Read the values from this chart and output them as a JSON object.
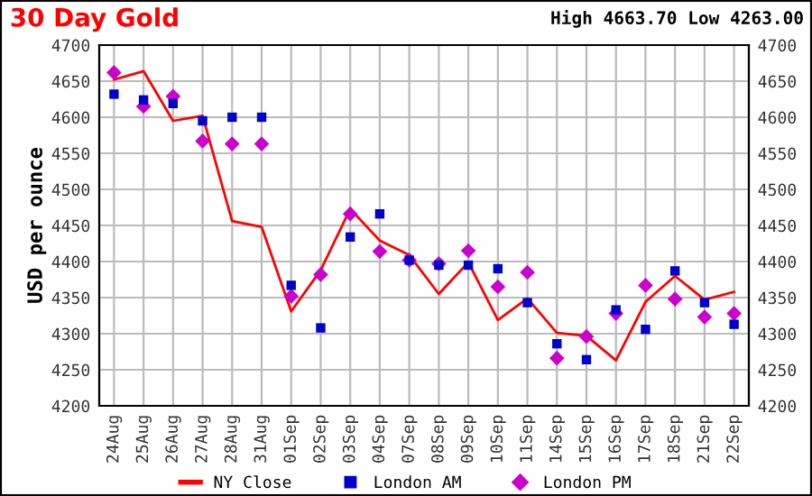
{
  "chart_data": {
    "type": "line",
    "title": "30 Day Gold",
    "annotations": [
      "High 4663.70 Low 4263.00"
    ],
    "ylabel": "USD per ounce",
    "categories": [
      "24Aug",
      "25Aug",
      "26Aug",
      "27Aug",
      "28Aug",
      "31Aug",
      "01Sep",
      "02Sep",
      "03Sep",
      "04Sep",
      "07Sep",
      "08Sep",
      "09Sep",
      "10Sep",
      "11Sep",
      "14Sep",
      "15Sep",
      "16Sep",
      "17Sep",
      "18Sep",
      "21Sep",
      "22Sep"
    ],
    "series": [
      {
        "name": "NY Close",
        "color": "#ff0000",
        "marker": "none",
        "values": [
          4652,
          4664,
          4595,
          4602,
          4456,
          4448,
          4331,
          4388,
          4473,
          4429,
          4409,
          4355,
          4399,
          4319,
          4349,
          4301,
          4297,
          4263,
          4344,
          4380,
          4347,
          4358
        ]
      },
      {
        "name": "London AM",
        "type": "scatter",
        "color": "#0000cc",
        "marker": "square",
        "values": [
          4632,
          4624,
          4619,
          4595,
          4600,
          4600,
          4367,
          4308,
          4434,
          4466,
          4402,
          4395,
          4395,
          4390,
          4343,
          4286,
          4264,
          4333,
          4306,
          4387,
          4343,
          4313
        ]
      },
      {
        "name": "London PM",
        "type": "scatter",
        "color": "#cc00cc",
        "marker": "diamond",
        "values": [
          4662,
          4615,
          4629,
          4567,
          4563,
          4563,
          4352,
          4382,
          4466,
          4414,
          4402,
          4397,
          4415,
          4365,
          4385,
          4266,
          4296,
          4328,
          4367,
          4348,
          4323,
          4328
        ]
      }
    ],
    "ylim": [
      4200,
      4700
    ],
    "yticks": [
      4200,
      4250,
      4300,
      4350,
      4400,
      4450,
      4500,
      4550,
      4600,
      4650,
      4700
    ],
    "y2lim": [
      4200,
      4700
    ],
    "y2ticks": [
      4200,
      4250,
      4300,
      4350,
      4400,
      4450,
      4500,
      4550,
      4600,
      4650,
      4700
    ],
    "grid": true,
    "legend": "bottom"
  }
}
